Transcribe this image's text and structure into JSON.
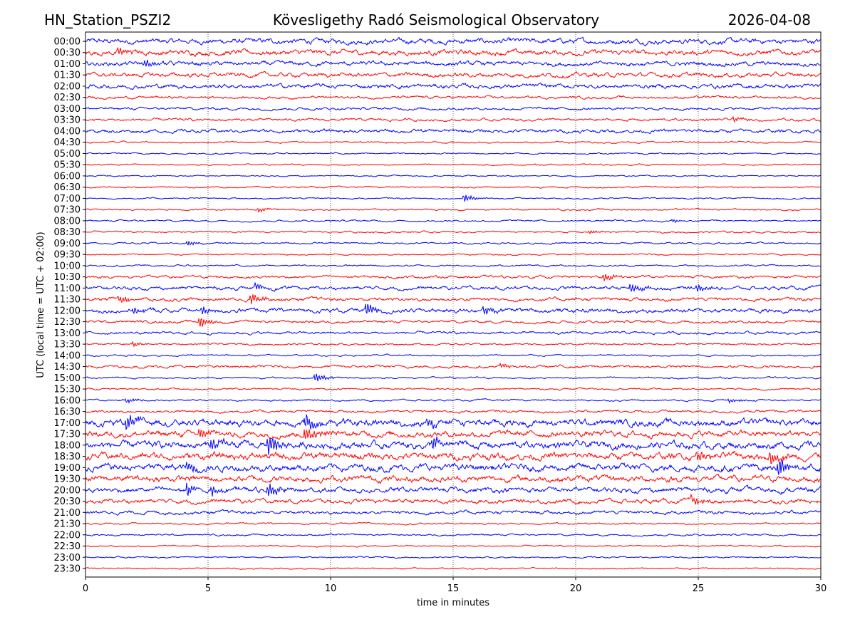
{
  "chart_data": {
    "type": "line",
    "title_left": "HN_Station_PSZI2",
    "title_center": "Kövesligethy Radó Seismological Observatory",
    "title_right": "2026-04-08",
    "xlabel": "time in minutes",
    "ylabel": "UTC (local time = UTC + 02:00)",
    "xlim": [
      0,
      30
    ],
    "xticks": [
      "0",
      "5",
      "10",
      "15",
      "20",
      "25",
      "30"
    ],
    "grid": "vertical dotted at 5-minute ticks",
    "colors": [
      "#0000ff",
      "#ff0000"
    ],
    "rows": [
      {
        "label": "00:00",
        "noise": 3,
        "events": []
      },
      {
        "label": "00:30",
        "noise": 3,
        "events": [
          [
            1.4,
            4
          ]
        ]
      },
      {
        "label": "01:00",
        "noise": 2.5,
        "events": [
          [
            2.5,
            4
          ]
        ]
      },
      {
        "label": "01:30",
        "noise": 2.5,
        "events": []
      },
      {
        "label": "02:00",
        "noise": 2.5,
        "events": []
      },
      {
        "label": "02:30",
        "noise": 1.5,
        "events": []
      },
      {
        "label": "03:00",
        "noise": 1.5,
        "events": []
      },
      {
        "label": "03:30",
        "noise": 1.5,
        "events": [
          [
            26.5,
            3
          ]
        ]
      },
      {
        "label": "04:00",
        "noise": 2,
        "events": []
      },
      {
        "label": "04:30",
        "noise": 1,
        "events": []
      },
      {
        "label": "05:00",
        "noise": 0.8,
        "events": []
      },
      {
        "label": "05:30",
        "noise": 0.8,
        "events": []
      },
      {
        "label": "06:00",
        "noise": 0.7,
        "events": []
      },
      {
        "label": "06:30",
        "noise": 0.8,
        "events": []
      },
      {
        "label": "07:00",
        "noise": 0.8,
        "events": [
          [
            15.5,
            5
          ]
        ]
      },
      {
        "label": "07:30",
        "noise": 1,
        "events": [
          [
            7.1,
            3
          ]
        ]
      },
      {
        "label": "08:00",
        "noise": 1,
        "events": [
          [
            24,
            2
          ]
        ]
      },
      {
        "label": "08:30",
        "noise": 1,
        "events": [
          [
            20.6,
            2
          ]
        ]
      },
      {
        "label": "09:00",
        "noise": 1,
        "events": [
          [
            4.2,
            3
          ]
        ]
      },
      {
        "label": "09:30",
        "noise": 0.8,
        "events": []
      },
      {
        "label": "10:00",
        "noise": 1,
        "events": []
      },
      {
        "label": "10:30",
        "noise": 1.5,
        "events": [
          [
            21.2,
            5
          ]
        ]
      },
      {
        "label": "11:00",
        "noise": 2,
        "events": [
          [
            22.3,
            6
          ],
          [
            25,
            5
          ],
          [
            7,
            4
          ]
        ]
      },
      {
        "label": "11:30",
        "noise": 2,
        "events": [
          [
            6.8,
            7
          ],
          [
            1.4,
            5
          ]
        ]
      },
      {
        "label": "12:00",
        "noise": 2.5,
        "events": [
          [
            11.5,
            8
          ],
          [
            16.3,
            5
          ],
          [
            4.8,
            5
          ],
          [
            2,
            4
          ]
        ]
      },
      {
        "label": "12:30",
        "noise": 1.5,
        "events": [
          [
            4.7,
            8
          ]
        ]
      },
      {
        "label": "13:00",
        "noise": 1.5,
        "events": []
      },
      {
        "label": "13:30",
        "noise": 1,
        "events": [
          [
            2,
            3
          ]
        ]
      },
      {
        "label": "14:00",
        "noise": 1,
        "events": []
      },
      {
        "label": "14:30",
        "noise": 1.5,
        "events": [
          [
            17,
            3
          ]
        ]
      },
      {
        "label": "15:00",
        "noise": 1,
        "events": [
          [
            9.4,
            6
          ]
        ]
      },
      {
        "label": "15:30",
        "noise": 1,
        "events": []
      },
      {
        "label": "16:00",
        "noise": 1,
        "events": [
          [
            1.7,
            3
          ],
          [
            26.3,
            3
          ]
        ]
      },
      {
        "label": "16:30",
        "noise": 1.5,
        "events": []
      },
      {
        "label": "17:00",
        "noise": 4,
        "events": [
          [
            1.7,
            10
          ],
          [
            9,
            10
          ],
          [
            14,
            7
          ]
        ]
      },
      {
        "label": "17:30",
        "noise": 3.5,
        "events": [
          [
            4.7,
            7
          ],
          [
            9,
            9
          ]
        ]
      },
      {
        "label": "18:00",
        "noise": 4,
        "events": [
          [
            7.5,
            12
          ],
          [
            14.2,
            8
          ],
          [
            5.2,
            7
          ]
        ]
      },
      {
        "label": "18:30",
        "noise": 4,
        "events": [
          [
            28,
            10
          ],
          [
            25,
            7
          ]
        ]
      },
      {
        "label": "19:00",
        "noise": 4,
        "events": [
          [
            28.3,
            12
          ],
          [
            4.2,
            6
          ]
        ]
      },
      {
        "label": "19:30",
        "noise": 3.5,
        "events": []
      },
      {
        "label": "20:00",
        "noise": 3,
        "events": [
          [
            4.2,
            8
          ],
          [
            7.5,
            8
          ],
          [
            5.2,
            6
          ]
        ]
      },
      {
        "label": "20:30",
        "noise": 2.5,
        "events": [
          [
            24.8,
            5
          ]
        ]
      },
      {
        "label": "21:00",
        "noise": 2,
        "events": []
      },
      {
        "label": "21:30",
        "noise": 1,
        "events": []
      },
      {
        "label": "22:00",
        "noise": 1,
        "events": []
      },
      {
        "label": "22:30",
        "noise": 0.8,
        "events": []
      },
      {
        "label": "23:00",
        "noise": 0.8,
        "events": []
      },
      {
        "label": "23:30",
        "noise": 0.8,
        "events": []
      }
    ]
  }
}
